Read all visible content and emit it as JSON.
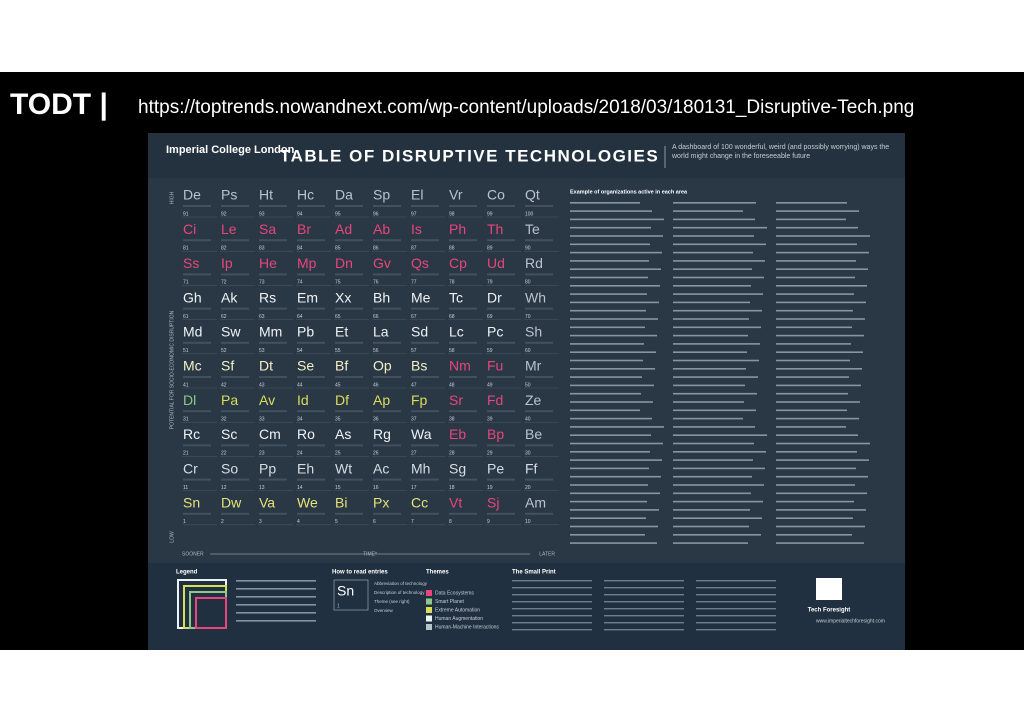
{
  "header": {
    "brand": "TODT |",
    "url": "https://toptrends.nowandnext.com/wp-content/uploads/2018/03/180131_Disruptive-Tech.png"
  },
  "poster": {
    "institution": "Imperial College London",
    "title": "TABLE OF DISRUPTIVE TECHNOLOGIES",
    "subtitle": "A dashboard of 100 wonderful, weird (and possibly worrying) ways the world might change in the foreseeable future",
    "axis": {
      "high": "HIGH",
      "low": "LOW",
      "y_label": "POTENTIAL FOR SOCIO-ECONOMIC DISRUPTION",
      "sooner": "SOONER",
      "time": "TIME*",
      "later": "LATER"
    },
    "rows": [
      {
        "color": "#b9c3cc",
        "cells": [
          {
            "s": "De",
            "n": 91
          },
          {
            "s": "Ps",
            "n": 92
          },
          {
            "s": "Ht",
            "n": 93
          },
          {
            "s": "Hc",
            "n": 94
          },
          {
            "s": "Da",
            "n": 95
          },
          {
            "s": "Sp",
            "n": 96
          },
          {
            "s": "El",
            "n": 97
          },
          {
            "s": "Vr",
            "n": 98
          },
          {
            "s": "Co",
            "n": 99
          },
          {
            "s": "Qt",
            "n": 100
          }
        ]
      },
      {
        "color": "#e8457c",
        "cells": [
          {
            "s": "Ci",
            "n": 81
          },
          {
            "s": "Le",
            "n": 82
          },
          {
            "s": "Sa",
            "n": 83
          },
          {
            "s": "Br",
            "n": 84
          },
          {
            "s": "Ad",
            "n": 85
          },
          {
            "s": "Ab",
            "n": 86
          },
          {
            "s": "Is",
            "n": 87
          },
          {
            "s": "Ph",
            "n": 88
          },
          {
            "s": "Th",
            "n": 89
          },
          {
            "s": "Te",
            "n": 90,
            "c": "#b9c3cc"
          }
        ]
      },
      {
        "color": "#e8457c",
        "cells": [
          {
            "s": "Ss",
            "n": 71
          },
          {
            "s": "Ip",
            "n": 72
          },
          {
            "s": "He",
            "n": 73
          },
          {
            "s": "Mp",
            "n": 74
          },
          {
            "s": "Dn",
            "n": 75
          },
          {
            "s": "Gv",
            "n": 76
          },
          {
            "s": "Qs",
            "n": 77
          },
          {
            "s": "Cp",
            "n": 78
          },
          {
            "s": "Ud",
            "n": 79
          },
          {
            "s": "Rd",
            "n": 80,
            "c": "#b9c3cc"
          }
        ]
      },
      {
        "color": "#eef2f5",
        "cells": [
          {
            "s": "Gh",
            "n": 61
          },
          {
            "s": "Ak",
            "n": 62
          },
          {
            "s": "Rs",
            "n": 63
          },
          {
            "s": "Em",
            "n": 64
          },
          {
            "s": "Xx",
            "n": 65
          },
          {
            "s": "Bh",
            "n": 66
          },
          {
            "s": "Me",
            "n": 67
          },
          {
            "s": "Tc",
            "n": 68
          },
          {
            "s": "Dr",
            "n": 69
          },
          {
            "s": "Wh",
            "n": 70,
            "c": "#b9c3cc"
          }
        ]
      },
      {
        "color": "#eef2f5",
        "cells": [
          {
            "s": "Md",
            "n": 51
          },
          {
            "s": "Sw",
            "n": 52
          },
          {
            "s": "Mm",
            "n": 53
          },
          {
            "s": "Pb",
            "n": 54
          },
          {
            "s": "Et",
            "n": 55
          },
          {
            "s": "La",
            "n": 56
          },
          {
            "s": "Sd",
            "n": 57
          },
          {
            "s": "Lc",
            "n": 58
          },
          {
            "s": "Pc",
            "n": 59
          },
          {
            "s": "Sh",
            "n": 60,
            "c": "#b9c3cc"
          }
        ]
      },
      {
        "color": "#f3f0c8",
        "cells": [
          {
            "s": "Mc",
            "n": 41
          },
          {
            "s": "Sf",
            "n": 42
          },
          {
            "s": "Dt",
            "n": 43
          },
          {
            "s": "Se",
            "n": 44
          },
          {
            "s": "Bf",
            "n": 45
          },
          {
            "s": "Op",
            "n": 46
          },
          {
            "s": "Bs",
            "n": 47
          },
          {
            "s": "Nm",
            "n": 48,
            "c": "#e8457c"
          },
          {
            "s": "Fu",
            "n": 49,
            "c": "#e8457c"
          },
          {
            "s": "Mr",
            "n": 50,
            "c": "#b9c3cc"
          }
        ]
      },
      {
        "color": "#d9de5a",
        "cells": [
          {
            "s": "Dl",
            "n": 31,
            "c": "#8fc98a"
          },
          {
            "s": "Pa",
            "n": 32
          },
          {
            "s": "Av",
            "n": 33
          },
          {
            "s": "Id",
            "n": 34
          },
          {
            "s": "Df",
            "n": 35
          },
          {
            "s": "Ap",
            "n": 36
          },
          {
            "s": "Fp",
            "n": 37
          },
          {
            "s": "Sr",
            "n": 38,
            "c": "#e8457c"
          },
          {
            "s": "Fd",
            "n": 39,
            "c": "#e8457c"
          },
          {
            "s": "Ze",
            "n": 40,
            "c": "#b9c3cc"
          }
        ]
      },
      {
        "color": "#eef2f5",
        "cells": [
          {
            "s": "Rc",
            "n": 21
          },
          {
            "s": "Sc",
            "n": 22
          },
          {
            "s": "Cm",
            "n": 23
          },
          {
            "s": "Ro",
            "n": 24
          },
          {
            "s": "As",
            "n": 25
          },
          {
            "s": "Rg",
            "n": 26
          },
          {
            "s": "Wa",
            "n": 27
          },
          {
            "s": "Eb",
            "n": 28,
            "c": "#e8457c"
          },
          {
            "s": "Bp",
            "n": 29,
            "c": "#e8457c"
          },
          {
            "s": "Be",
            "n": 30,
            "c": "#b9c3cc"
          }
        ]
      },
      {
        "color": "#d6dde3",
        "cells": [
          {
            "s": "Cr",
            "n": 11
          },
          {
            "s": "So",
            "n": 12
          },
          {
            "s": "Pp",
            "n": 13
          },
          {
            "s": "Eh",
            "n": 14
          },
          {
            "s": "Wt",
            "n": 15
          },
          {
            "s": "Ac",
            "n": 16
          },
          {
            "s": "Mh",
            "n": 17
          },
          {
            "s": "Sg",
            "n": 18
          },
          {
            "s": "Pe",
            "n": 19
          },
          {
            "s": "Ff",
            "n": 20
          }
        ]
      },
      {
        "color": "#e4e27a",
        "cells": [
          {
            "s": "Sn",
            "n": 1
          },
          {
            "s": "Dw",
            "n": 2
          },
          {
            "s": "Va",
            "n": 3
          },
          {
            "s": "We",
            "n": 4
          },
          {
            "s": "Bi",
            "n": 5
          },
          {
            "s": "Px",
            "n": 6
          },
          {
            "s": "Cc",
            "n": 7
          },
          {
            "s": "Vt",
            "n": 8,
            "c": "#e8457c"
          },
          {
            "s": "Sj",
            "n": 9,
            "c": "#e8457c"
          },
          {
            "s": "Am",
            "n": 10,
            "c": "#b9c3cc"
          }
        ]
      }
    ],
    "examples_heading": "Example of organizations active in each area",
    "legend": {
      "title": "Legend"
    },
    "how_to_read": {
      "title": "How to read entries",
      "symbol": "Sn",
      "number": 1,
      "notes": [
        "Abbreviation of technology",
        "Description of technology",
        "Theme (see right)",
        "Overview"
      ]
    },
    "themes": {
      "title": "Themes",
      "items": [
        {
          "label": "Data Ecosystems",
          "color": "#e8457c"
        },
        {
          "label": "Smart Planet",
          "color": "#8fc98a"
        },
        {
          "label": "Extreme Automation",
          "color": "#d9de5a"
        },
        {
          "label": "Human Augmentation",
          "color": "#eef2f5"
        },
        {
          "label": "Human-Machine Interactions",
          "color": "#b9c3cc"
        }
      ]
    },
    "small_print": {
      "title": "The Small Print"
    },
    "brand": "Tech Foresight",
    "website": "www.imperialtechforesight.com"
  }
}
